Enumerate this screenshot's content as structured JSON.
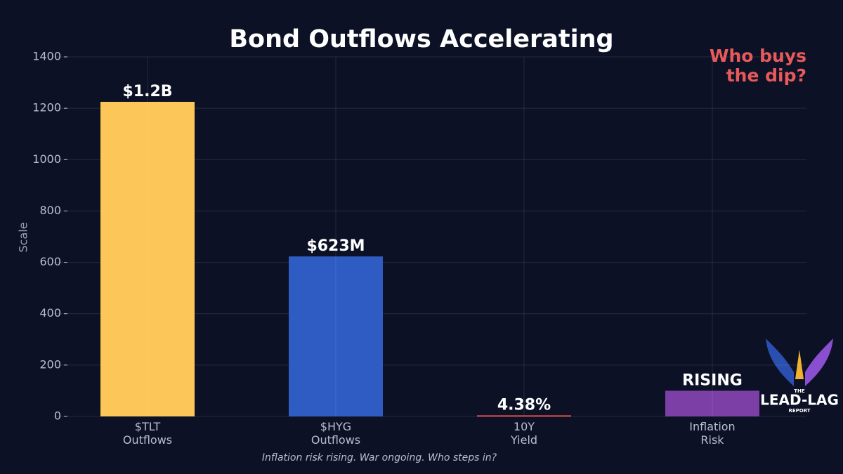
{
  "chart_data": {
    "type": "bar",
    "title": "Bond Outflows Accelerating",
    "annotation": "Who buys\nthe dip?",
    "footnote": "Inflation risk rising. War ongoing. Who steps in?",
    "y_label": "Scale",
    "categories": [
      "$TLT\nOutflows",
      "$HYG\nOutflows",
      "10Y\nYield",
      "Inflation\nRisk"
    ],
    "values": [
      1225,
      623,
      4.38,
      100
    ],
    "value_labels": [
      "$1.2B",
      "$623M",
      "4.38%",
      "RISING"
    ],
    "colors": [
      "#fdc658",
      "#2f5cc2",
      "#e0504e",
      "#7b3fa6"
    ],
    "ylim": [
      0,
      1400
    ],
    "yticks": [
      0,
      200,
      400,
      600,
      800,
      1000,
      1200,
      1400
    ],
    "grid": true,
    "logo": [
      "THE",
      "LEAD-LAG",
      "REPORT"
    ]
  }
}
